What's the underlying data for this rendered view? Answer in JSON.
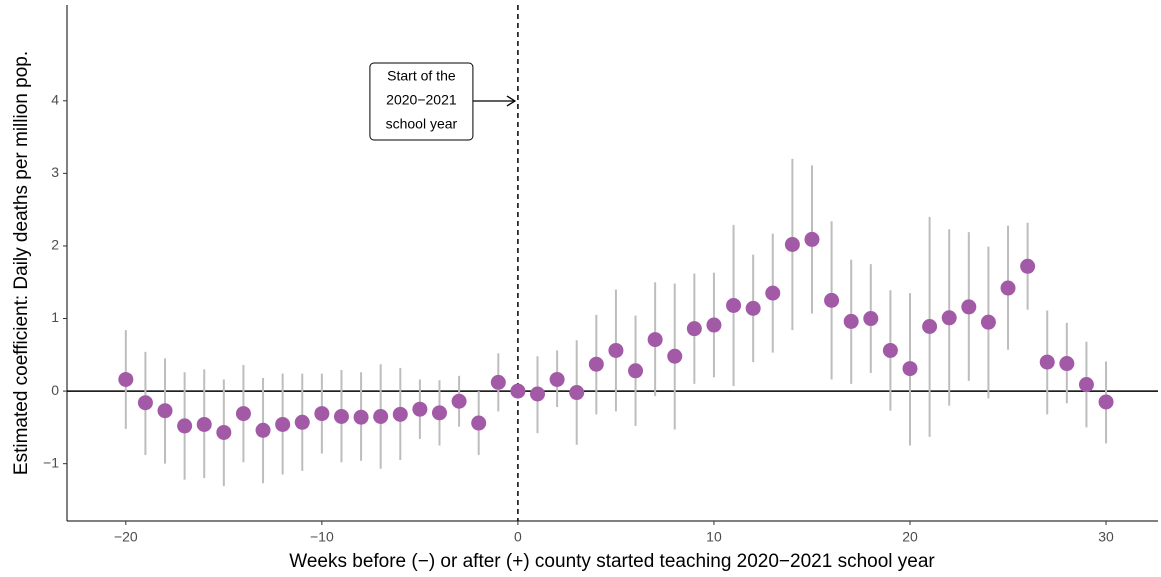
{
  "chart_data": {
    "type": "scatter",
    "x_label": "Weeks before (−) or after (+) county started teaching 2020−2021 school year",
    "y_label": "Estimated coefficient: Daily deaths per million pop.",
    "annotation": [
      "Start of the",
      "2020−2021",
      "school year"
    ],
    "vline": 0,
    "hline": 0,
    "xlim": [
      -23.0,
      32.65
    ],
    "ylim": [
      -1.79,
      5.32
    ],
    "xticks": [
      {
        "value": -20,
        "label": "−20"
      },
      {
        "value": -10,
        "label": "−10"
      },
      0,
      10,
      20,
      30
    ],
    "yticks": [
      {
        "value": -1,
        "label": "−1"
      },
      0,
      1,
      2,
      3,
      4
    ],
    "color": "#a35aa6",
    "error_color": "#bdbdbd",
    "grid": false,
    "x": [
      -20,
      -19,
      -18,
      -17,
      -16,
      -15,
      -14,
      -13,
      -12,
      -11,
      -10,
      -9,
      -8,
      -7,
      -6,
      -5,
      -4,
      -3,
      -2,
      -1,
      0,
      1,
      2,
      3,
      4,
      5,
      6,
      7,
      8,
      9,
      10,
      11,
      12,
      13,
      14,
      15,
      16,
      17,
      18,
      19,
      20,
      21,
      22,
      23,
      24,
      25,
      26,
      27,
      28,
      29,
      30
    ],
    "values": [
      0.16,
      -0.16,
      -0.27,
      -0.48,
      -0.46,
      -0.57,
      -0.31,
      -0.54,
      -0.46,
      -0.43,
      -0.31,
      -0.35,
      -0.36,
      -0.35,
      -0.32,
      -0.25,
      -0.3,
      -0.14,
      -0.44,
      0.12,
      0.0,
      -0.04,
      0.16,
      -0.02,
      0.37,
      0.56,
      0.28,
      0.71,
      0.48,
      0.86,
      0.91,
      1.18,
      1.14,
      1.35,
      2.02,
      2.09,
      1.25,
      0.96,
      1.0,
      0.56,
      0.31,
      0.89,
      1.01,
      1.16,
      0.95,
      1.42,
      1.72,
      0.4,
      0.38,
      0.09,
      -0.15
    ],
    "lower": [
      -0.52,
      -0.88,
      -1.0,
      -1.22,
      -1.2,
      -1.31,
      -0.98,
      -1.27,
      -1.15,
      -1.1,
      -0.86,
      -0.98,
      -0.96,
      -1.07,
      -0.95,
      -0.66,
      -0.75,
      -0.49,
      -0.88,
      -0.28,
      null,
      -0.58,
      -0.22,
      -0.74,
      -0.32,
      -0.28,
      -0.48,
      -0.07,
      -0.53,
      0.1,
      0.19,
      0.07,
      0.4,
      0.53,
      0.84,
      1.07,
      0.16,
      0.1,
      0.25,
      -0.27,
      -0.75,
      -0.63,
      -0.2,
      0.14,
      -0.1,
      0.57,
      1.12,
      -0.32,
      -0.17,
      -0.5,
      -0.72
    ],
    "upper": [
      0.84,
      0.54,
      0.45,
      0.26,
      0.3,
      0.16,
      0.36,
      0.18,
      0.24,
      0.24,
      0.24,
      0.29,
      0.26,
      0.37,
      0.32,
      0.16,
      0.15,
      0.21,
      0.0,
      0.52,
      null,
      0.48,
      0.56,
      0.7,
      1.05,
      1.4,
      1.04,
      1.5,
      1.48,
      1.62,
      1.63,
      2.29,
      1.88,
      2.17,
      3.2,
      3.11,
      2.34,
      1.81,
      1.75,
      1.39,
      1.35,
      2.4,
      2.23,
      2.19,
      1.99,
      2.28,
      2.32,
      1.11,
      0.94,
      0.68,
      0.41
    ]
  }
}
